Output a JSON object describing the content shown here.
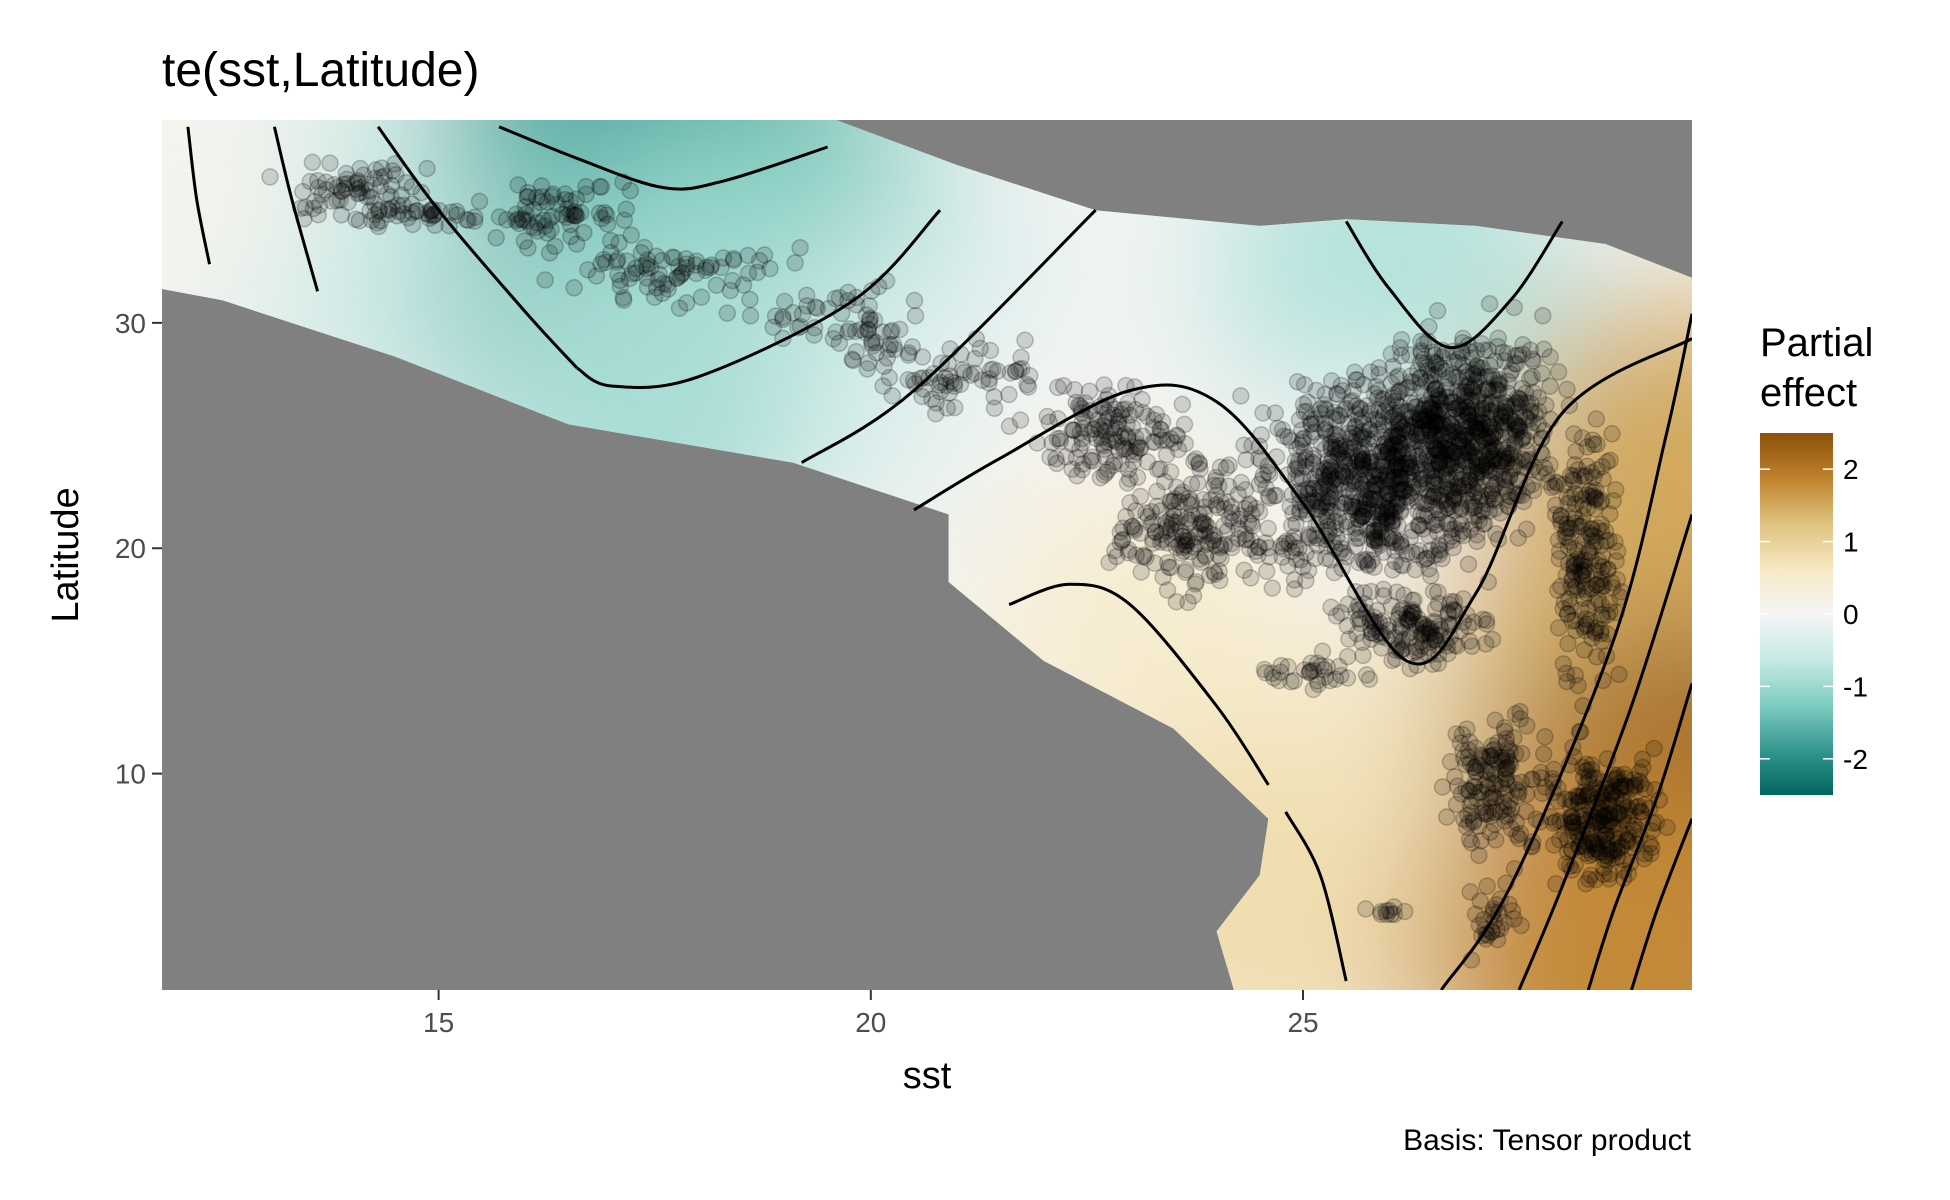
{
  "chart_data": {
    "type": "heatmap",
    "title": "te(sst,Latitude)",
    "xlabel": "sst",
    "ylabel": "Latitude",
    "xlim": [
      11.8,
      29.5
    ],
    "ylim": [
      0.4,
      39.0
    ],
    "x_ticks": [
      15,
      20,
      25
    ],
    "y_ticks": [
      10,
      20,
      30
    ],
    "grid": false,
    "background_color": "#808080",
    "legend": {
      "title_lines": [
        "Partial",
        "effect"
      ],
      "placement": "right",
      "ticks": [
        2,
        1,
        0,
        -1,
        -2
      ],
      "range": [
        -2.5,
        2.5
      ],
      "colors": [
        "#01665e",
        "#35978f",
        "#80cdc1",
        "#c7eae5",
        "#f5f5f5",
        "#f6e8c3",
        "#dfc27d",
        "#bf812d",
        "#8c510a"
      ]
    },
    "caption": "Basis: Tensor product",
    "data_region_polygon": [
      [
        11.8,
        39.0
      ],
      [
        19.6,
        39.0
      ],
      [
        21.0,
        37.0
      ],
      [
        22.6,
        35.0
      ],
      [
        24.5,
        34.3
      ],
      [
        25.5,
        34.6
      ],
      [
        27.0,
        34.3
      ],
      [
        28.5,
        33.5
      ],
      [
        29.5,
        32.0
      ],
      [
        29.5,
        0.4
      ],
      [
        24.2,
        0.4
      ],
      [
        24.0,
        3.0
      ],
      [
        24.5,
        5.5
      ],
      [
        24.6,
        8.0
      ],
      [
        23.5,
        12.0
      ],
      [
        22.0,
        15.0
      ],
      [
        20.9,
        18.5
      ],
      [
        20.9,
        21.5
      ],
      [
        19.1,
        23.8
      ],
      [
        16.5,
        25.5
      ],
      [
        14.5,
        28.5
      ],
      [
        12.5,
        31.0
      ],
      [
        11.8,
        31.5
      ]
    ],
    "effect_field": [
      {
        "x": 17.5,
        "y": 37.5,
        "value": -2.2
      },
      {
        "x": 16.5,
        "y": 34.0,
        "value": -1.6
      },
      {
        "x": 19.0,
        "y": 33.0,
        "value": -1.2
      },
      {
        "x": 13.5,
        "y": 34.5,
        "value": -0.6
      },
      {
        "x": 17.5,
        "y": 27.0,
        "value": -0.9
      },
      {
        "x": 21.0,
        "y": 28.0,
        "value": -0.4
      },
      {
        "x": 26.0,
        "y": 32.0,
        "value": -0.8
      },
      {
        "x": 22.5,
        "y": 24.0,
        "value": 0.0
      },
      {
        "x": 26.0,
        "y": 21.0,
        "value": 0.0
      },
      {
        "x": 23.0,
        "y": 17.0,
        "value": 0.4
      },
      {
        "x": 24.0,
        "y": 12.0,
        "value": 0.5
      },
      {
        "x": 24.6,
        "y": 4.0,
        "value": 0.8
      },
      {
        "x": 27.5,
        "y": 10.0,
        "value": 0.6
      },
      {
        "x": 28.7,
        "y": 15.0,
        "value": 1.3
      },
      {
        "x": 29.4,
        "y": 22.0,
        "value": 1.5
      },
      {
        "x": 29.4,
        "y": 5.0,
        "value": 2.5
      },
      {
        "x": 28.8,
        "y": 2.0,
        "value": 1.8
      },
      {
        "x": 11.9,
        "y": 36.0,
        "value": 0.1
      }
    ],
    "contours": [
      [
        [
          12.1,
          38.7
        ],
        [
          12.2,
          35.5
        ],
        [
          12.35,
          32.6
        ]
      ],
      [
        [
          13.1,
          38.7
        ],
        [
          13.3,
          35.5
        ],
        [
          13.6,
          31.4
        ]
      ],
      [
        [
          14.3,
          38.7
        ],
        [
          15.0,
          35.0
        ],
        [
          16.0,
          30.5
        ],
        [
          16.6,
          28.0
        ]
      ],
      [
        [
          15.7,
          38.7
        ],
        [
          16.6,
          37.3
        ],
        [
          17.6,
          36.0
        ],
        [
          18.3,
          36.3
        ],
        [
          19.5,
          37.8
        ]
      ],
      [
        [
          16.6,
          28.0
        ],
        [
          17.0,
          27.2
        ],
        [
          18.0,
          27.6
        ],
        [
          19.8,
          31.0
        ],
        [
          20.8,
          35.0
        ]
      ],
      [
        [
          19.2,
          23.8
        ],
        [
          20.5,
          27.0
        ],
        [
          22.6,
          35.0
        ]
      ],
      [
        [
          20.5,
          21.7
        ],
        [
          21.5,
          24.0
        ],
        [
          23.0,
          27.0
        ],
        [
          24.0,
          26.5
        ],
        [
          25.0,
          22.0
        ],
        [
          26.2,
          15.0
        ],
        [
          27.0,
          18.0
        ],
        [
          28.0,
          26.0
        ],
        [
          29.5,
          29.3
        ]
      ],
      [
        [
          21.6,
          17.5
        ],
        [
          22.3,
          18.4
        ],
        [
          23.0,
          17.5
        ],
        [
          24.0,
          13.0
        ],
        [
          24.6,
          9.5
        ]
      ],
      [
        [
          24.8,
          8.3
        ],
        [
          25.2,
          5.5
        ],
        [
          25.5,
          0.8
        ]
      ],
      [
        [
          25.5,
          34.5
        ],
        [
          26.0,
          31.5
        ],
        [
          26.7,
          28.9
        ],
        [
          27.4,
          31.0
        ],
        [
          28.0,
          34.5
        ]
      ],
      [
        [
          26.6,
          0.4
        ],
        [
          27.4,
          5.0
        ],
        [
          28.6,
          16.0
        ],
        [
          29.2,
          25.0
        ],
        [
          29.5,
          30.4
        ]
      ],
      [
        [
          27.5,
          0.4
        ],
        [
          28.0,
          5.0
        ],
        [
          28.8,
          13.0
        ],
        [
          29.5,
          21.5
        ]
      ],
      [
        [
          28.3,
          0.4
        ],
        [
          28.6,
          4.0
        ],
        [
          29.1,
          9.0
        ],
        [
          29.5,
          14.0
        ]
      ],
      [
        [
          28.8,
          0.4
        ],
        [
          29.1,
          4.0
        ],
        [
          29.5,
          8.0
        ]
      ]
    ],
    "point_clusters": [
      {
        "x": [
          12.5,
          15.5
        ],
        "y": [
          34.5,
          37.5
        ],
        "n": 60
      },
      {
        "x": [
          13.0,
          16.5
        ],
        "y": [
          34.0,
          35.5
        ],
        "n": 50
      },
      {
        "x": [
          15.2,
          17.5
        ],
        "y": [
          33.0,
          37.0
        ],
        "n": 70
      },
      {
        "x": [
          16.0,
          19.5
        ],
        "y": [
          30.0,
          34.5
        ],
        "n": 80
      },
      {
        "x": [
          18.5,
          21.0
        ],
        "y": [
          27.5,
          32.5
        ],
        "n": 60
      },
      {
        "x": [
          19.5,
          22.5
        ],
        "y": [
          25.0,
          30.0
        ],
        "n": 70
      },
      {
        "x": [
          21.5,
          24.0
        ],
        "y": [
          22.0,
          28.0
        ],
        "n": 140
      },
      {
        "x": [
          22.5,
          25.0
        ],
        "y": [
          17.0,
          25.0
        ],
        "n": 200
      },
      {
        "x": [
          24.0,
          27.5
        ],
        "y": [
          17.0,
          29.0
        ],
        "n": 700
      },
      {
        "x": [
          25.5,
          28.3
        ],
        "y": [
          19.0,
          31.5
        ],
        "n": 700
      },
      {
        "x": [
          25.0,
          27.5
        ],
        "y": [
          14.0,
          19.0
        ],
        "n": 160
      },
      {
        "x": [
          26.5,
          28.0
        ],
        "y": [
          5.0,
          14.0
        ],
        "n": 150
      },
      {
        "x": [
          27.5,
          29.5
        ],
        "y": [
          4.0,
          12.0
        ],
        "n": 260
      },
      {
        "x": [
          27.8,
          28.8
        ],
        "y": [
          12.0,
          28.0
        ],
        "n": 200
      },
      {
        "x": [
          24.0,
          26.0
        ],
        "y": [
          13.5,
          15.5
        ],
        "n": 30
      },
      {
        "x": [
          25.7,
          26.3
        ],
        "y": [
          3.5,
          4.3
        ],
        "n": 10
      },
      {
        "x": [
          26.8,
          27.6
        ],
        "y": [
          1.0,
          6.0
        ],
        "n": 30
      }
    ]
  }
}
